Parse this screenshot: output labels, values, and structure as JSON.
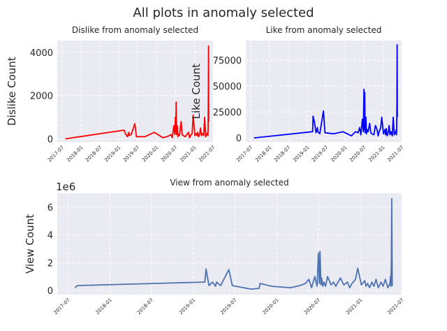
{
  "title": "All plots in anomaly selected",
  "chart_data": [
    {
      "type": "line",
      "title": "Dislike from anomaly selected",
      "xlabel": "",
      "ylabel": "Dislike Count",
      "color": "#ff0000",
      "x_ticks": [
        "2017-07",
        "2018-01",
        "2018-07",
        "2019-01",
        "2019-07",
        "2020-01",
        "2020-07",
        "2021-01",
        "2021-07"
      ],
      "y_ticks": [
        "0",
        "2000",
        "4000"
      ],
      "ylim": [
        -150,
        4550
      ],
      "xlim": [
        "2017-05-15",
        "2021-06-30"
      ],
      "grid": true,
      "series": [
        {
          "name": "Dislike Count",
          "x": [
            "2017-08-01",
            "2019-02-20",
            "2019-02-25",
            "2019-03-10",
            "2019-03-25",
            "2019-04-08",
            "2019-04-12",
            "2019-04-30",
            "2019-06-05",
            "2019-06-20",
            "2019-09-10",
            "2019-12-10",
            "2020-03-01",
            "2020-04-10",
            "2020-05-05",
            "2020-05-20",
            "2020-06-01",
            "2020-06-15",
            "2020-06-25",
            "2020-07-01",
            "2020-07-05",
            "2020-07-08",
            "2020-07-12",
            "2020-07-15",
            "2020-07-20",
            "2020-07-25",
            "2020-08-01",
            "2020-08-10",
            "2020-08-25",
            "2020-09-05",
            "2020-09-15",
            "2020-10-05",
            "2020-10-20",
            "2020-11-05",
            "2020-11-15",
            "2020-11-25",
            "2020-12-10",
            "2020-12-20",
            "2021-01-05",
            "2021-01-20",
            "2021-01-25",
            "2021-02-01",
            "2021-02-10",
            "2021-02-20",
            "2021-03-01",
            "2021-03-10",
            "2021-03-20",
            "2021-04-01",
            "2021-04-10",
            "2021-04-20",
            "2021-05-01",
            "2021-05-10",
            "2021-05-12",
            "2021-05-14",
            "2021-05-16",
            "2021-05-18",
            "2021-05-20"
          ],
          "y": [
            0,
            400,
            350,
            200,
            100,
            300,
            150,
            200,
            700,
            100,
            100,
            300,
            50,
            100,
            150,
            200,
            50,
            600,
            200,
            1000,
            300,
            1700,
            200,
            300,
            600,
            100,
            200,
            150,
            800,
            200,
            150,
            100,
            200,
            300,
            50,
            150,
            250,
            1100,
            150,
            250,
            150,
            300,
            100,
            200,
            500,
            150,
            250,
            150,
            1000,
            100,
            200,
            300,
            150,
            500,
            2000,
            4300,
            800
          ]
        }
      ]
    },
    {
      "type": "line",
      "title": "Like from anomaly selected",
      "xlabel": "",
      "ylabel": "Like Count",
      "color": "#0000ff",
      "x_ticks": [
        "2017-07",
        "2018-01",
        "2018-07",
        "2019-01",
        "2019-07",
        "2020-01",
        "2020-07",
        "2021-01",
        "2021-07"
      ],
      "y_ticks": [
        "0",
        "25000",
        "50000",
        "75000"
      ],
      "ylim": [
        -4000,
        94000
      ],
      "xlim": [
        "2017-05-15",
        "2021-06-30"
      ],
      "grid": true,
      "series": [
        {
          "name": "Like Count",
          "x": [
            "2017-08-01",
            "2019-02-20",
            "2019-02-25",
            "2019-03-10",
            "2019-03-25",
            "2019-04-08",
            "2019-04-12",
            "2019-04-30",
            "2019-06-05",
            "2019-06-20",
            "2019-09-10",
            "2019-12-10",
            "2020-03-01",
            "2020-04-10",
            "2020-05-05",
            "2020-05-20",
            "2020-06-01",
            "2020-06-15",
            "2020-06-25",
            "2020-07-01",
            "2020-07-05",
            "2020-07-08",
            "2020-07-12",
            "2020-07-15",
            "2020-07-20",
            "2020-07-25",
            "2020-08-01",
            "2020-08-10",
            "2020-08-25",
            "2020-09-05",
            "2020-09-15",
            "2020-10-05",
            "2020-10-20",
            "2020-11-05",
            "2020-11-15",
            "2020-11-25",
            "2020-12-10",
            "2020-12-20",
            "2021-01-05",
            "2021-01-20",
            "2021-01-25",
            "2021-02-01",
            "2021-02-10",
            "2021-02-20",
            "2021-03-01",
            "2021-03-10",
            "2021-03-20",
            "2021-04-01",
            "2021-04-10",
            "2021-04-20",
            "2021-05-01",
            "2021-05-10",
            "2021-05-12",
            "2021-05-14",
            "2021-05-16",
            "2021-05-18",
            "2021-05-20"
          ],
          "y": [
            0,
            6000,
            21000,
            15000,
            5000,
            10000,
            6000,
            4000,
            26000,
            5000,
            4000,
            6000,
            2000,
            6000,
            5000,
            10000,
            3000,
            18000,
            6000,
            47000,
            8000,
            44000,
            5000,
            7000,
            20000,
            4000,
            8000,
            6000,
            14000,
            5000,
            4000,
            3000,
            12000,
            8000,
            2000,
            6000,
            10000,
            20000,
            4000,
            8000,
            3000,
            9000,
            2000,
            5000,
            12000,
            3000,
            6000,
            2000,
            20000,
            3000,
            5000,
            8000,
            3000,
            10000,
            30000,
            90000,
            20000
          ]
        }
      ]
    },
    {
      "type": "line",
      "title": "View from anomaly selected",
      "xlabel": "",
      "ylabel": "View Count",
      "offset_text": "1e6",
      "color": "#4c72b0",
      "x_ticks": [
        "2017-07",
        "2018-01",
        "2018-07",
        "2019-01",
        "2019-07",
        "2020-01",
        "2020-07",
        "2021-01",
        "2021-07"
      ],
      "y_ticks": [
        "0",
        "2",
        "4",
        "6"
      ],
      "ylim": [
        -0.3,
        7.0
      ],
      "xlim": [
        "2017-05-15",
        "2021-06-30"
      ],
      "grid": true,
      "series": [
        {
          "name": "View Count (x1e6)",
          "x": [
            "2017-08-01",
            "2017-08-10",
            "2019-02-20",
            "2019-02-25",
            "2019-03-10",
            "2019-03-25",
            "2019-04-08",
            "2019-04-12",
            "2019-04-30",
            "2019-06-05",
            "2019-06-20",
            "2019-09-10",
            "2019-10-15",
            "2019-10-20",
            "2019-12-10",
            "2020-03-01",
            "2020-04-10",
            "2020-05-05",
            "2020-05-20",
            "2020-06-01",
            "2020-06-15",
            "2020-06-25",
            "2020-07-01",
            "2020-07-05",
            "2020-07-08",
            "2020-07-12",
            "2020-07-15",
            "2020-07-20",
            "2020-07-25",
            "2020-08-01",
            "2020-08-10",
            "2020-08-25",
            "2020-09-05",
            "2020-09-15",
            "2020-10-05",
            "2020-10-20",
            "2020-11-05",
            "2020-11-15",
            "2020-11-25",
            "2020-12-10",
            "2020-12-20",
            "2021-01-05",
            "2021-01-20",
            "2021-01-25",
            "2021-02-01",
            "2021-02-10",
            "2021-02-20",
            "2021-03-01",
            "2021-03-10",
            "2021-03-20",
            "2021-04-01",
            "2021-04-10",
            "2021-04-20",
            "2021-05-01",
            "2021-05-10",
            "2021-05-12",
            "2021-05-14",
            "2021-05-16",
            "2021-05-18",
            "2021-05-20"
          ],
          "y": [
            0.2,
            0.35,
            0.6,
            1.55,
            0.35,
            0.6,
            0.3,
            0.6,
            0.35,
            1.5,
            0.35,
            0.1,
            0.15,
            0.5,
            0.3,
            0.2,
            0.35,
            0.5,
            0.8,
            0.2,
            1.0,
            0.3,
            2.7,
            0.5,
            2.8,
            0.4,
            0.9,
            0.3,
            0.6,
            0.3,
            1.0,
            0.4,
            0.6,
            0.3,
            0.9,
            0.4,
            0.6,
            0.2,
            0.5,
            0.8,
            1.6,
            0.4,
            0.7,
            0.3,
            0.5,
            0.2,
            0.6,
            0.3,
            0.8,
            0.2,
            0.6,
            0.3,
            0.8,
            0.2,
            0.5,
            1.0,
            0.3,
            2.0,
            6.6,
            0.3
          ]
        }
      ]
    }
  ]
}
